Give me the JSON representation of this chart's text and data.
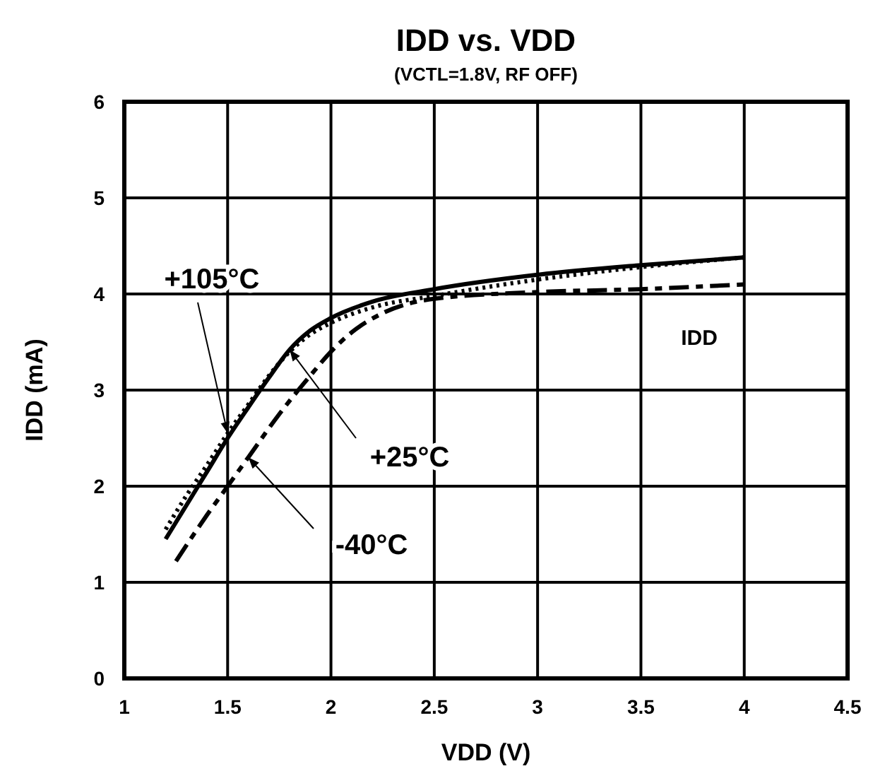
{
  "chart_data": {
    "type": "line",
    "title": "IDD vs. VDD",
    "subtitle": "(VCTL=1.8V, RF OFF)",
    "xlabel": "VDD (V)",
    "ylabel": "IDD (mA)",
    "xlim": [
      1,
      4.5
    ],
    "xticks": [
      1,
      1.5,
      2,
      2.5,
      3,
      3.5,
      4,
      4.5
    ],
    "ylim": [
      0,
      6
    ],
    "yticks": [
      0,
      1,
      2,
      3,
      4,
      5,
      6
    ],
    "grid": true,
    "marker": "none",
    "series": [
      {
        "color": "#000000",
        "line_style": "dotted",
        "x": [
          1.2,
          1.3,
          1.4,
          1.5,
          1.6,
          1.7,
          1.8,
          1.9,
          2.0,
          2.2,
          2.5,
          3.0,
          3.5,
          4.0
        ],
        "values": [
          1.55,
          1.9,
          2.22,
          2.55,
          2.85,
          3.15,
          3.4,
          3.58,
          3.7,
          3.86,
          3.98,
          4.15,
          4.28,
          4.38
        ]
      },
      {
        "color": "#000000",
        "line_style": "solid",
        "x": [
          1.2,
          1.3,
          1.4,
          1.5,
          1.6,
          1.7,
          1.8,
          1.9,
          2.0,
          2.2,
          2.5,
          3.0,
          3.5,
          4.0
        ],
        "values": [
          1.45,
          1.8,
          2.15,
          2.5,
          2.82,
          3.13,
          3.42,
          3.62,
          3.75,
          3.92,
          4.05,
          4.2,
          4.3,
          4.38
        ]
      },
      {
        "color": "#000000",
        "line_style": "dashed",
        "x": [
          1.25,
          1.4,
          1.5,
          1.6,
          1.75,
          1.9,
          2.0,
          2.1,
          2.25,
          2.5,
          3.0,
          3.5,
          4.0
        ],
        "values": [
          1.22,
          1.7,
          2.0,
          2.3,
          2.75,
          3.15,
          3.4,
          3.6,
          3.8,
          3.95,
          4.02,
          4.05,
          4.1
        ]
      }
    ],
    "annotations": [
      {
        "text": "+105°C",
        "x": 1.5,
        "y": 2.55
      },
      {
        "text": "+25°C",
        "x": 1.8,
        "y": 3.42
      },
      {
        "text": "-40°C",
        "x": 1.6,
        "y": 2.3
      },
      "IDD"
    ]
  }
}
